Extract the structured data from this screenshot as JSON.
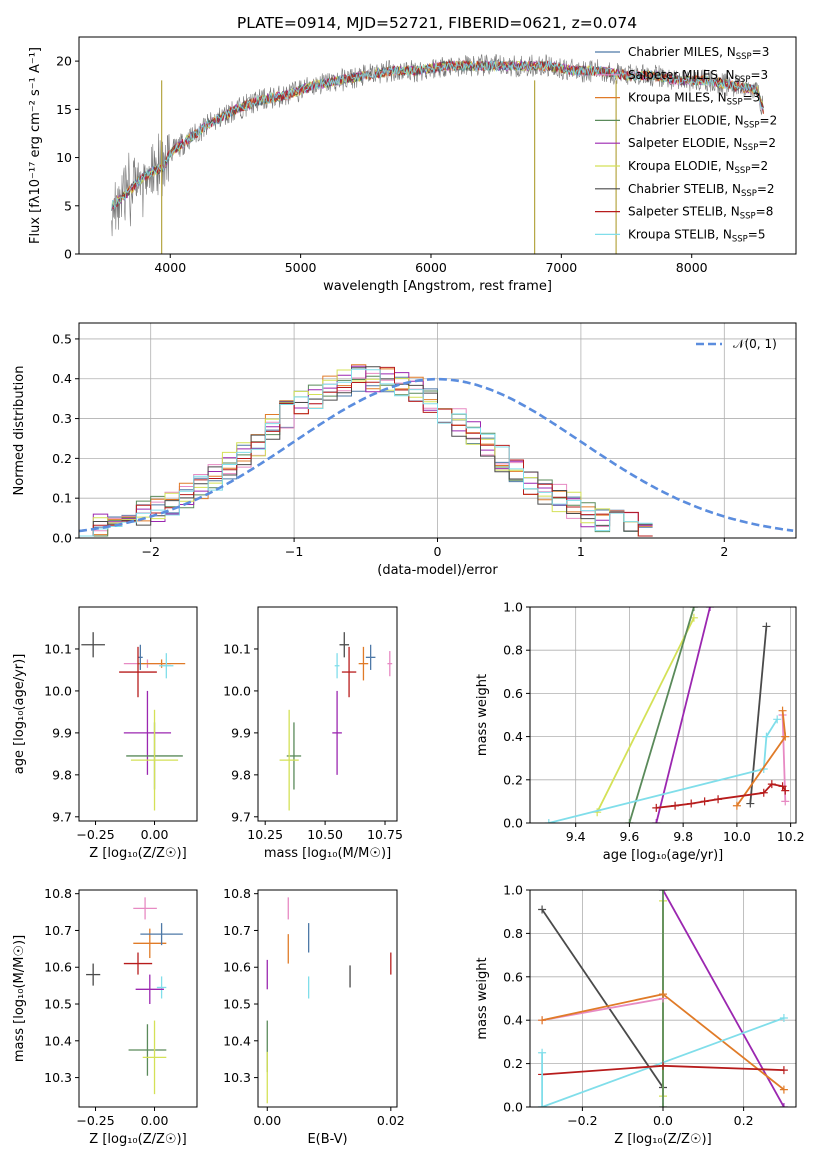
{
  "figure": {
    "title": "PLATE=0914, MJD=52721, FIBERID=0621, z=0.074"
  },
  "chart_data": [
    {
      "type": "line",
      "panel": "spectrum",
      "xlabel": "wavelength [Angstrom, rest frame]",
      "ylabel": "Flux [fλ10⁻¹⁷ erg cm⁻² s⁻¹ A⁻¹]",
      "xlim": [
        3300,
        8800
      ],
      "ylim": [
        0,
        22.5
      ],
      "xticks": [
        "4000",
        "5000",
        "6000",
        "7000",
        "8000"
      ],
      "yticks": [
        "0",
        "5",
        "10",
        "15",
        "20"
      ],
      "grid": false,
      "legend_position": "lower-right",
      "continuum": {
        "x": [
          3550,
          3650,
          3750,
          3850,
          3950,
          4000,
          4100,
          4200,
          4300,
          4500,
          4700,
          4900,
          5100,
          5300,
          5500,
          5700,
          5900,
          6100,
          6300,
          6500,
          6700,
          6900,
          7100,
          7300,
          7500,
          7700,
          7900,
          8100,
          8300,
          8500,
          8550
        ],
        "y": [
          5.0,
          6.0,
          7.5,
          8.5,
          9.0,
          10.5,
          11.5,
          12.5,
          13.5,
          15.0,
          16.0,
          16.5,
          17.5,
          18.0,
          18.5,
          19.0,
          19.0,
          19.5,
          19.5,
          19.5,
          19.5,
          19.5,
          19.0,
          19.0,
          18.5,
          18.5,
          18.0,
          18.0,
          17.5,
          17.0,
          15.0
        ]
      },
      "legend": [
        {
          "label": "Chabrier MILES, N",
          "sub": "SSP",
          "tail": "=3",
          "color": "#4e79a7"
        },
        {
          "label": "Salpeter MILES, N",
          "sub": "SSP",
          "tail": "=3",
          "color": "#e78ac3"
        },
        {
          "label": "Kroupa MILES, N",
          "sub": "SSP",
          "tail": "=3",
          "color": "#e07b28"
        },
        {
          "label": "Chabrier ELODIE, N",
          "sub": "SSP",
          "tail": "=2",
          "color": "#5a8a5a"
        },
        {
          "label": "Salpeter ELODIE, N",
          "sub": "SSP",
          "tail": "=2",
          "color": "#9b27b0"
        },
        {
          "label": "Kroupa ELODIE, N",
          "sub": "SSP",
          "tail": "=2",
          "color": "#d4e157"
        },
        {
          "label": "Chabrier STELIB, N",
          "sub": "SSP",
          "tail": "=2",
          "color": "#4a4a4a"
        },
        {
          "label": "Salpeter STELIB, N",
          "sub": "SSP",
          "tail": "=8",
          "color": "#b71c1c"
        },
        {
          "label": "Kroupa STELIB, N",
          "sub": "SSP",
          "tail": "=5",
          "color": "#80deea"
        }
      ]
    },
    {
      "type": "histogram",
      "panel": "residuals",
      "xlabel": "(data-model)/error",
      "ylabel": "Normed distribution",
      "xlim": [
        -2.5,
        2.5
      ],
      "ylim": [
        0,
        0.54
      ],
      "xticks": [
        "−2",
        "−1",
        "0",
        "1",
        "2"
      ],
      "yticks": [
        "0.0",
        "0.1",
        "0.2",
        "0.3",
        "0.4",
        "0.5"
      ],
      "grid": true,
      "legend_label": "𝒩(0, 1)",
      "legend_position": "top-right",
      "normal_curve": {
        "mean": 0,
        "sigma": 1,
        "color": "#5b8dde"
      },
      "bin_width": 0.1,
      "envelope": [
        0.02,
        0.03,
        0.04,
        0.05,
        0.06,
        0.07,
        0.09,
        0.11,
        0.13,
        0.15,
        0.18,
        0.21,
        0.24,
        0.28,
        0.31,
        0.34,
        0.36,
        0.38,
        0.39,
        0.4,
        0.4,
        0.4,
        0.39,
        0.37,
        0.35,
        0.32,
        0.29,
        0.26,
        0.23,
        0.2,
        0.17,
        0.14,
        0.12,
        0.1,
        0.08,
        0.06,
        0.05,
        0.04,
        0.03,
        0.02
      ]
    },
    {
      "type": "scatter",
      "panel": "age-vs-Z",
      "xlabel": "Z [log₁₀(Z/Z☉)]",
      "ylabel": "age  [log₁₀(age/yr)]",
      "xlim": [
        -0.32,
        0.18
      ],
      "ylim": [
        9.69,
        10.2
      ],
      "xticks": [
        "−0.25",
        "0.00"
      ],
      "yticks": [
        "9.7",
        "9.8",
        "9.9",
        "10.0",
        "10.1"
      ],
      "points": [
        {
          "x": -0.26,
          "y": 10.11,
          "xerr": 0.05,
          "yerr": 0.03,
          "color": "#4a4a4a"
        },
        {
          "x": -0.03,
          "y": 10.065,
          "xerr": 0.1,
          "yerr": 0.01,
          "color": "#e78ac3"
        },
        {
          "x": 0.03,
          "y": 10.065,
          "xerr": 0.1,
          "yerr": 0.01,
          "color": "#e07b28"
        },
        {
          "x": -0.06,
          "y": 10.08,
          "xerr": 0.01,
          "yerr": 0.03,
          "color": "#4e79a7"
        },
        {
          "x": -0.07,
          "y": 10.045,
          "xerr": 0.08,
          "yerr": 0.06,
          "color": "#b71c1c"
        },
        {
          "x": 0.05,
          "y": 10.06,
          "xerr": 0.03,
          "yerr": 0.03,
          "color": "#80deea"
        },
        {
          "x": -0.03,
          "y": 9.9,
          "xerr": 0.1,
          "yerr": 0.1,
          "color": "#9b27b0"
        },
        {
          "x": 0.0,
          "y": 9.845,
          "xerr": 0.12,
          "yerr": 0.08,
          "color": "#5a8a5a"
        },
        {
          "x": 0.0,
          "y": 9.835,
          "xerr": 0.1,
          "yerr": 0.12,
          "color": "#d4e157"
        }
      ]
    },
    {
      "type": "scatter",
      "panel": "age-vs-mass",
      "xlabel": "mass [log₁₀(M/M☉)]",
      "ylabel": "",
      "xlim": [
        10.22,
        10.8
      ],
      "ylim": [
        9.69,
        10.2
      ],
      "xticks": [
        "10.25",
        "10.50",
        "10.75"
      ],
      "yticks": [
        "9.7",
        "9.8",
        "9.9",
        "10.0",
        "10.1"
      ],
      "points": [
        {
          "x": 10.58,
          "y": 10.11,
          "xerr": 0.02,
          "yerr": 0.03,
          "color": "#4a4a4a"
        },
        {
          "x": 10.77,
          "y": 10.065,
          "xerr": 0.01,
          "yerr": 0.03,
          "color": "#e78ac3"
        },
        {
          "x": 10.66,
          "y": 10.065,
          "xerr": 0.02,
          "yerr": 0.04,
          "color": "#e07b28"
        },
        {
          "x": 10.69,
          "y": 10.08,
          "xerr": 0.02,
          "yerr": 0.03,
          "color": "#4e79a7"
        },
        {
          "x": 10.6,
          "y": 10.045,
          "xerr": 0.03,
          "yerr": 0.06,
          "color": "#b71c1c"
        },
        {
          "x": 10.55,
          "y": 10.06,
          "xerr": 0.01,
          "yerr": 0.03,
          "color": "#80deea"
        },
        {
          "x": 10.55,
          "y": 9.9,
          "xerr": 0.02,
          "yerr": 0.1,
          "color": "#9b27b0"
        },
        {
          "x": 10.37,
          "y": 9.845,
          "xerr": 0.03,
          "yerr": 0.08,
          "color": "#5a8a5a"
        },
        {
          "x": 10.35,
          "y": 9.835,
          "xerr": 0.04,
          "yerr": 0.12,
          "color": "#d4e157"
        }
      ]
    },
    {
      "type": "line",
      "panel": "weight-vs-age",
      "xlabel": "age  [log₁₀(age/yr)]",
      "ylabel": "mass weight",
      "xlim": [
        9.23,
        10.22
      ],
      "ylim": [
        0,
        1
      ],
      "xticks": [
        "9.4",
        "9.6",
        "9.8",
        "10.0",
        "10.2"
      ],
      "yticks": [
        "0.0",
        "0.2",
        "0.4",
        "0.6",
        "0.8",
        "1.0"
      ],
      "grid": true,
      "series": [
        {
          "color": "#d4e157",
          "x": [
            9.48,
            9.84
          ],
          "y": [
            0.05,
            0.95
          ]
        },
        {
          "color": "#5a8a5a",
          "x": [
            9.6,
            9.84
          ],
          "y": [
            0.0,
            1.0
          ]
        },
        {
          "color": "#9b27b0",
          "x": [
            9.7,
            9.9
          ],
          "y": [
            0.0,
            1.0
          ]
        },
        {
          "color": "#4a4a4a",
          "x": [
            10.05,
            10.11
          ],
          "y": [
            0.09,
            0.91
          ]
        },
        {
          "color": "#80deea",
          "x": [
            9.3,
            10.1,
            10.11,
            10.15
          ],
          "y": [
            0.0,
            0.25,
            0.4,
            0.48
          ]
        },
        {
          "color": "#e78ac3",
          "x": [
            10.17,
            10.18
          ],
          "y": [
            0.5,
            0.1
          ]
        },
        {
          "color": "#e07b28",
          "x": [
            10.0,
            10.18,
            10.17
          ],
          "y": [
            0.08,
            0.4,
            0.52
          ]
        },
        {
          "color": "#b71c1c",
          "x": [
            9.7,
            9.77,
            9.83,
            9.88,
            9.93,
            10.1,
            10.13,
            10.17,
            10.18
          ],
          "y": [
            0.07,
            0.08,
            0.09,
            0.1,
            0.11,
            0.14,
            0.18,
            0.17,
            0.15
          ]
        }
      ]
    },
    {
      "type": "scatter",
      "panel": "mass-vs-Z",
      "xlabel": "Z [log₁₀(Z/Z☉)]",
      "ylabel": "mass [log₁₀(M/M☉)]",
      "xlim": [
        -0.32,
        0.18
      ],
      "ylim": [
        10.22,
        10.81
      ],
      "xticks": [
        "−0.25",
        "0.00"
      ],
      "yticks": [
        "10.3",
        "10.4",
        "10.5",
        "10.6",
        "10.7",
        "10.8"
      ],
      "points": [
        {
          "x": -0.26,
          "y": 10.58,
          "xerr": 0.03,
          "yerr": 0.03,
          "color": "#4a4a4a"
        },
        {
          "x": -0.04,
          "y": 10.76,
          "xerr": 0.05,
          "yerr": 0.03,
          "color": "#e78ac3"
        },
        {
          "x": -0.02,
          "y": 10.665,
          "xerr": 0.07,
          "yerr": 0.04,
          "color": "#e07b28"
        },
        {
          "x": 0.03,
          "y": 10.69,
          "xerr": 0.09,
          "yerr": 0.03,
          "color": "#4e79a7"
        },
        {
          "x": -0.07,
          "y": 10.61,
          "xerr": 0.06,
          "yerr": 0.03,
          "color": "#b71c1c"
        },
        {
          "x": 0.03,
          "y": 10.545,
          "xerr": 0.02,
          "yerr": 0.03,
          "color": "#80deea"
        },
        {
          "x": -0.02,
          "y": 10.54,
          "xerr": 0.06,
          "yerr": 0.04,
          "color": "#9b27b0"
        },
        {
          "x": -0.03,
          "y": 10.375,
          "xerr": 0.08,
          "yerr": 0.07,
          "color": "#5a8a5a"
        },
        {
          "x": 0.0,
          "y": 10.355,
          "xerr": 0.05,
          "yerr": 0.1,
          "color": "#d4e157"
        }
      ]
    },
    {
      "type": "scatter",
      "panel": "mass-vs-EBV",
      "xlabel": "E(B-V)",
      "ylabel": "",
      "xlim": [
        -0.0015,
        0.021
      ],
      "ylim": [
        10.22,
        10.81
      ],
      "xticks": [
        "0.00",
        "0.02"
      ],
      "yticks": [
        "10.3",
        "10.4",
        "10.5",
        "10.6",
        "10.7",
        "10.8"
      ],
      "points": [
        {
          "x": 0.0134,
          "y": 10.575,
          "xerr": 0.0,
          "yerr": 0.03,
          "color": "#4a4a4a"
        },
        {
          "x": 0.0034,
          "y": 10.76,
          "xerr": 0.0,
          "yerr": 0.03,
          "color": "#e78ac3"
        },
        {
          "x": 0.0034,
          "y": 10.65,
          "xerr": 0.0,
          "yerr": 0.04,
          "color": "#e07b28"
        },
        {
          "x": 0.0067,
          "y": 10.68,
          "xerr": 0.0,
          "yerr": 0.04,
          "color": "#4e79a7"
        },
        {
          "x": 0.02,
          "y": 10.61,
          "xerr": 0.0,
          "yerr": 0.03,
          "color": "#b71c1c"
        },
        {
          "x": 0.0067,
          "y": 10.545,
          "xerr": 0.0,
          "yerr": 0.03,
          "color": "#80deea"
        },
        {
          "x": 0.0,
          "y": 10.58,
          "xerr": 0.0,
          "yerr": 0.04,
          "color": "#9b27b0"
        },
        {
          "x": 0.0,
          "y": 10.385,
          "xerr": 0.0,
          "yerr": 0.07,
          "color": "#5a8a5a"
        },
        {
          "x": 0.0,
          "y": 10.3,
          "xerr": 0.0,
          "yerr": 0.07,
          "color": "#d4e157"
        }
      ]
    },
    {
      "type": "line",
      "panel": "weight-vs-Z",
      "xlabel": "Z [log₁₀(Z/Z☉)]",
      "ylabel": "mass weight",
      "xlim": [
        -0.33,
        0.33
      ],
      "ylim": [
        0,
        1
      ],
      "xticks": [
        "−0.2",
        "0.0",
        "0.2"
      ],
      "yticks": [
        "0.0",
        "0.2",
        "0.4",
        "0.6",
        "0.8",
        "1.0"
      ],
      "grid": true,
      "series": [
        {
          "color": "#4a4a4a",
          "x": [
            -0.3,
            0.0
          ],
          "y": [
            0.91,
            0.09
          ]
        },
        {
          "color": "#9b27b0",
          "x": [
            0.0,
            0.3
          ],
          "y": [
            1.0,
            0.0
          ]
        },
        {
          "color": "#d4e157",
          "x": [
            0.0,
            0.0
          ],
          "y": [
            0.95,
            0.05
          ]
        },
        {
          "color": "#5a8a5a",
          "x": [
            0.0,
            0.0
          ],
          "y": [
            1.0,
            0.0
          ]
        },
        {
          "color": "#e78ac3",
          "x": [
            -0.3,
            0.0
          ],
          "y": [
            0.4,
            0.5
          ]
        },
        {
          "color": "#e07b28",
          "x": [
            -0.3,
            0.0,
            0.3
          ],
          "y": [
            0.4,
            0.52,
            0.08
          ]
        },
        {
          "color": "#80deea",
          "x": [
            -0.3,
            0.3
          ],
          "y": [
            0.0,
            0.41
          ]
        },
        {
          "color": "#b71c1c",
          "x": [
            -0.3,
            0.0,
            0.3
          ],
          "y": [
            0.15,
            0.19,
            0.17
          ]
        },
        {
          "color": "#80deea",
          "x": [
            -0.3,
            -0.3
          ],
          "y": [
            0.25,
            0.0
          ]
        }
      ]
    }
  ]
}
